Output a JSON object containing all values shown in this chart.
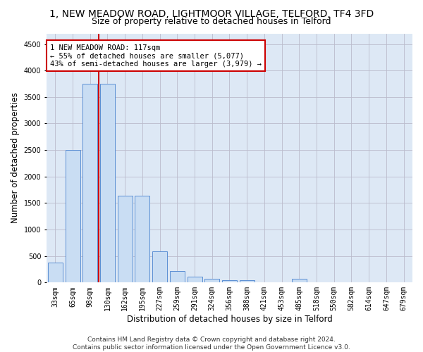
{
  "title": "1, NEW MEADOW ROAD, LIGHTMOOR VILLAGE, TELFORD, TF4 3FD",
  "subtitle": "Size of property relative to detached houses in Telford",
  "xlabel": "Distribution of detached houses by size in Telford",
  "ylabel": "Number of detached properties",
  "footer_line1": "Contains HM Land Registry data © Crown copyright and database right 2024.",
  "footer_line2": "Contains public sector information licensed under the Open Government Licence v3.0.",
  "categories": [
    "33sqm",
    "65sqm",
    "98sqm",
    "130sqm",
    "162sqm",
    "195sqm",
    "227sqm",
    "259sqm",
    "291sqm",
    "324sqm",
    "356sqm",
    "388sqm",
    "421sqm",
    "453sqm",
    "485sqm",
    "518sqm",
    "550sqm",
    "582sqm",
    "614sqm",
    "647sqm",
    "679sqm"
  ],
  "values": [
    370,
    2500,
    3750,
    3750,
    1640,
    1640,
    590,
    220,
    110,
    65,
    45,
    40,
    0,
    0,
    65,
    0,
    0,
    0,
    0,
    0,
    0
  ],
  "bar_color": "#c9ddf3",
  "bar_edge_color": "#5b8fd4",
  "vline_color": "#cc0000",
  "vline_x_index": 2.5,
  "annotation_text": "1 NEW MEADOW ROAD: 117sqm\n← 55% of detached houses are smaller (5,077)\n43% of semi-detached houses are larger (3,979) →",
  "annotation_box_facecolor": "white",
  "annotation_box_edgecolor": "#cc0000",
  "ylim": [
    0,
    4700
  ],
  "yticks": [
    0,
    500,
    1000,
    1500,
    2000,
    2500,
    3000,
    3500,
    4000,
    4500
  ],
  "grid_color": "#bbbbcc",
  "bg_color": "#dde8f5",
  "title_fontsize": 10,
  "subtitle_fontsize": 9,
  "axis_label_fontsize": 8.5,
  "tick_fontsize": 7,
  "footer_fontsize": 6.5,
  "annotation_fontsize": 7.5
}
